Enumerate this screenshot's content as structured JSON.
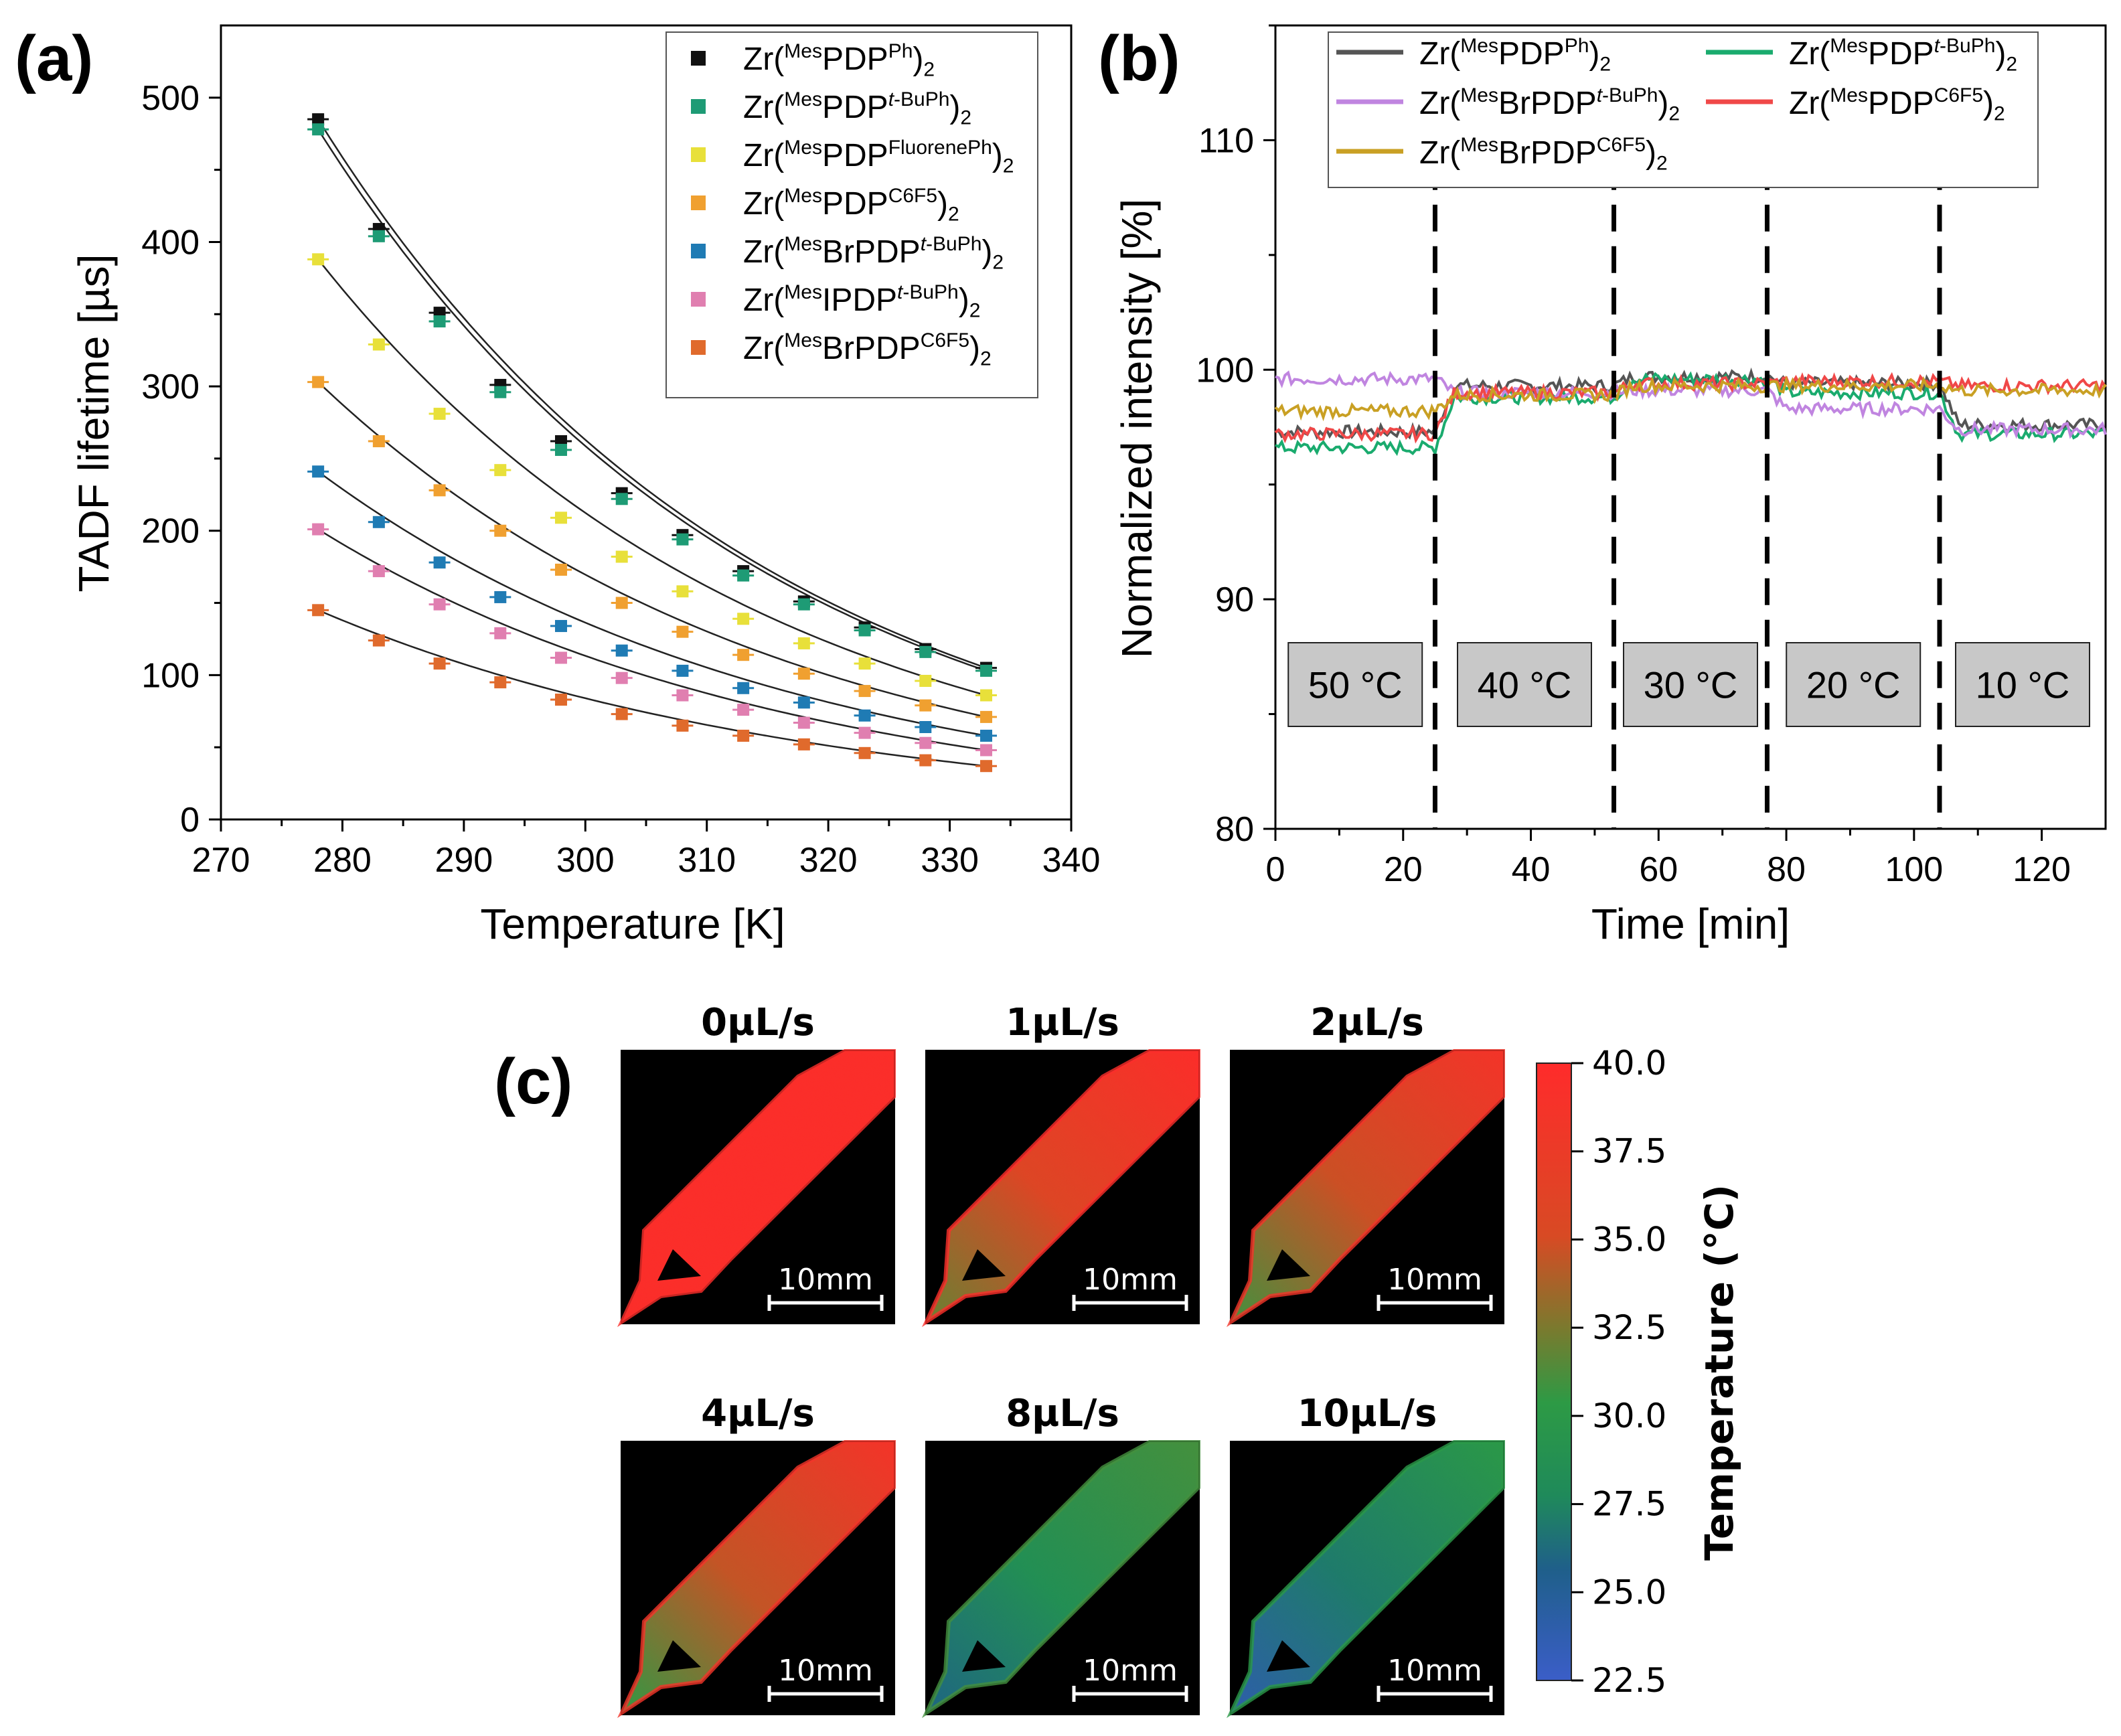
{
  "panel_labels": [
    "(a)",
    "(b)",
    "(c)"
  ],
  "chart_data": [
    {
      "panel": "(a)",
      "type": "scatter",
      "title": "",
      "xlabel": "Temperature [K]",
      "ylabel": "TADF lifetime [µs]",
      "xlim": [
        270,
        340
      ],
      "ylim": [
        0,
        550
      ],
      "xticks": [
        "270",
        "280",
        "290",
        "300",
        "310",
        "320",
        "330",
        "340"
      ],
      "yticks": [
        "0",
        "100",
        "200",
        "300",
        "400",
        "500"
      ],
      "x": [
        278,
        283,
        288,
        293,
        298,
        303,
        308,
        313,
        318,
        323,
        328,
        333
      ],
      "legend_position": "top-right",
      "fit_curves": "exponential fit (black line) through each series",
      "series": [
        {
          "name": "Zr(MesPDPPh)2",
          "main": "Zr(",
          "sup1": "Mes",
          "mid": "PDP",
          "sup2": "Ph",
          "end": ")",
          "sub": "2",
          "color": "#111111",
          "values": [
            485,
            409,
            351,
            301,
            262,
            226,
            197,
            172,
            151,
            133,
            118,
            105
          ]
        },
        {
          "name": "Zr(MesPDPt-BuPh)2",
          "main": "Zr(",
          "sup1": "Mes",
          "mid": "PDP",
          "sup2": "t-BuPh",
          "end": ")",
          "sub": "2",
          "color": "#1e9b75",
          "values": [
            478,
            404,
            345,
            296,
            256,
            222,
            194,
            169,
            149,
            131,
            116,
            103
          ]
        },
        {
          "name": "Zr(MesPDPFluorenePh)2",
          "main": "Zr(",
          "sup1": "Mes",
          "mid": "PDP",
          "sup2": "FluorenePh",
          "end": ")",
          "sub": "2",
          "color": "#e8e03a",
          "values": [
            388,
            329,
            281,
            242,
            209,
            182,
            158,
            139,
            122,
            108,
            96,
            86
          ]
        },
        {
          "name": "Zr(MesPDPC6F5)2",
          "main": "Zr(",
          "sup1": "Mes",
          "mid": "PDP",
          "sup2": "C6F5",
          "end": ")",
          "sub": "2",
          "color": "#f0a030",
          "values": [
            303,
            262,
            228,
            200,
            173,
            150,
            130,
            114,
            101,
            89,
            79,
            71
          ]
        },
        {
          "name": "Zr(MesBrPDPt-BuPh)2",
          "main": "Zr(",
          "sup1": "Mes",
          "mid": "BrPDP",
          "sup2": "t-BuPh",
          "end": ")",
          "sub": "2",
          "color": "#1f7bb4",
          "values": [
            241,
            206,
            178,
            154,
            134,
            117,
            103,
            91,
            81,
            72,
            64,
            58
          ]
        },
        {
          "name": "Zr(MesIPDPt-BuPh)2",
          "main": "Zr(",
          "sup1": "Mes",
          "mid": "IPDP",
          "sup2": "t-BuPh",
          "end": ")",
          "sub": "2",
          "color": "#e07fb0",
          "values": [
            201,
            172,
            149,
            129,
            112,
            98,
            86,
            76,
            67,
            60,
            53,
            48
          ]
        },
        {
          "name": "Zr(MesBrPDPC6F5)2",
          "main": "Zr(",
          "sup1": "Mes",
          "mid": "BrPDP",
          "sup2": "C6F5",
          "end": ")",
          "sub": "2",
          "color": "#e06a2c",
          "values": [
            145,
            124,
            108,
            95,
            83,
            73,
            65,
            58,
            52,
            46,
            41,
            37
          ]
        }
      ]
    },
    {
      "panel": "(b)",
      "type": "line",
      "title": "",
      "xlabel": "Time [min]",
      "ylabel": "Normalized intensity [%]",
      "xlim": [
        0,
        130
      ],
      "ylim": [
        80,
        115
      ],
      "xticks": [
        "0",
        "20",
        "40",
        "60",
        "80",
        "100",
        "120"
      ],
      "yticks": [
        "80",
        "90",
        "100",
        "110"
      ],
      "legend_position": "top",
      "dashed_lines_x": [
        25,
        53,
        77,
        104
      ],
      "temperature_boxes": [
        "50 °C",
        "40 °C",
        "30 °C",
        "20 °C",
        "10 °C"
      ],
      "series": [
        {
          "name": "Zr(MesPDPPh)2",
          "main": "Zr(",
          "sup1": "Mes",
          "mid": "PDP",
          "sup2": "Ph",
          "end": ")",
          "sub": "2",
          "color": "#555555",
          "levels": [
            [
              0,
              25,
              97.3
            ],
            [
              25,
              53,
              99.3
            ],
            [
              53,
              77,
              99.7
            ],
            [
              77,
              104,
              99.4
            ],
            [
              104,
              130,
              97.6
            ]
          ]
        },
        {
          "name": "Zr(MesPDPt-BuPh)2",
          "main": "Zr(",
          "sup1": "Mes",
          "mid": "PDP",
          "sup2": "t-BuPh",
          "end": ")",
          "sub": "2",
          "color": "#1aab6e",
          "levels": [
            [
              0,
              25,
              96.6
            ],
            [
              25,
              53,
              98.8
            ],
            [
              53,
              77,
              99.6
            ],
            [
              77,
              104,
              99.0
            ],
            [
              104,
              130,
              97.2
            ]
          ]
        },
        {
          "name": "Zr(MesBrPDPt-BuPh)2",
          "main": "Zr(",
          "sup1": "Mes",
          "mid": "BrPDP",
          "sup2": "t-BuPh",
          "end": ")",
          "sub": "2",
          "color": "#c085e0",
          "levels": [
            [
              0,
              25,
              99.6
            ],
            [
              25,
              53,
              99.0
            ],
            [
              53,
              77,
              99.1
            ],
            [
              77,
              104,
              98.3
            ],
            [
              104,
              130,
              97.4
            ]
          ]
        },
        {
          "name": "Zr(MesPDPC6F5)2",
          "main": "Zr(",
          "sup1": "Mes",
          "mid": "PDP",
          "sup2": "C6F5",
          "end": ")",
          "sub": "2",
          "color": "#f04848",
          "levels": [
            [
              0,
              25,
              97.2
            ],
            [
              25,
              53,
              99.0
            ],
            [
              53,
              77,
              99.4
            ],
            [
              77,
              104,
              99.5
            ],
            [
              104,
              130,
              99.3
            ]
          ]
        },
        {
          "name": "Zr(MesBrPDPC6F5)2",
          "main": "Zr(",
          "sup1": "Mes",
          "mid": "BrPDP",
          "sup2": "C6F5",
          "end": ")",
          "sub": "2",
          "color": "#c9a024",
          "levels": [
            [
              0,
              25,
              98.2
            ],
            [
              25,
              53,
              98.9
            ],
            [
              53,
              77,
              99.3
            ],
            [
              77,
              104,
              99.3
            ],
            [
              104,
              130,
              99.1
            ]
          ]
        }
      ]
    },
    {
      "panel": "(c)",
      "type": "heatmap",
      "colorbar_label": "Temperature (°C)",
      "colorbar_range": [
        22.5,
        40.0
      ],
      "colorbar_ticks": [
        "40.0",
        "37.5",
        "35.0",
        "32.5",
        "30.0",
        "27.5",
        "25.0",
        "22.5"
      ],
      "scale_bar": "10mm",
      "maps": [
        {
          "title": "0µL/s",
          "inlet_temp": 39.5,
          "far_temp": 39.5
        },
        {
          "title": "1µL/s",
          "inlet_temp": 32.0,
          "far_temp": 39.5
        },
        {
          "title": "2µL/s",
          "inlet_temp": 31.0,
          "far_temp": 38.5
        },
        {
          "title": "4µL/s",
          "inlet_temp": 30.5,
          "far_temp": 38.5
        },
        {
          "title": "8µL/s",
          "inlet_temp": 26.0,
          "far_temp": 31.0
        },
        {
          "title": "10µL/s",
          "inlet_temp": 24.0,
          "far_temp": 30.0
        }
      ]
    }
  ]
}
